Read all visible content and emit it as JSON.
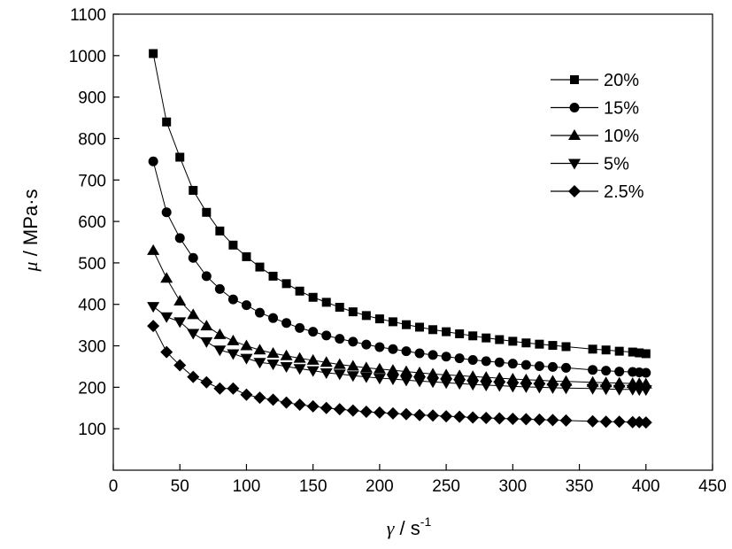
{
  "chart_data": {
    "type": "line",
    "title": "",
    "xlabel": {
      "symbol": "γ",
      "unit": " / s",
      "sup": "-1"
    },
    "ylabel": {
      "symbol": "μ",
      "unit": " / MPa·s"
    },
    "xlim": [
      0,
      450
    ],
    "ylim": [
      0,
      1100
    ],
    "xticks": [
      "0",
      "50",
      "100",
      "150",
      "200",
      "250",
      "300",
      "350",
      "400",
      "450"
    ],
    "yticks": [
      "100",
      "200",
      "300",
      "400",
      "500",
      "600",
      "700",
      "800",
      "900",
      "1000",
      "1100"
    ],
    "grid": false,
    "legend_position": "top-right",
    "x": [
      30,
      40,
      50,
      60,
      70,
      80,
      90,
      100,
      110,
      120,
      130,
      140,
      150,
      160,
      170,
      180,
      190,
      200,
      210,
      220,
      230,
      240,
      250,
      260,
      270,
      280,
      290,
      300,
      310,
      320,
      330,
      340,
      360,
      370,
      380,
      390,
      395,
      400
    ],
    "series": [
      {
        "name": "20%",
        "marker": "square",
        "values": [
          1005,
          840,
          755,
          675,
          622,
          577,
          543,
          515,
          490,
          468,
          450,
          432,
          417,
          405,
          393,
          382,
          373,
          365,
          358,
          351,
          345,
          339,
          334,
          329,
          324,
          319,
          315,
          311,
          307,
          304,
          301,
          298,
          292,
          290,
          287,
          285,
          283,
          281
        ]
      },
      {
        "name": "15%",
        "marker": "circle",
        "values": [
          745,
          622,
          560,
          512,
          468,
          437,
          412,
          398,
          380,
          367,
          355,
          343,
          334,
          325,
          317,
          310,
          303,
          297,
          292,
          287,
          282,
          278,
          274,
          270,
          266,
          263,
          260,
          257,
          254,
          251,
          249,
          247,
          242,
          240,
          238,
          237,
          236,
          235
        ]
      },
      {
        "name": "10%",
        "marker": "triangle-up",
        "values": [
          530,
          463,
          408,
          375,
          348,
          327,
          312,
          300,
          290,
          282,
          276,
          270,
          265,
          260,
          255,
          251,
          247,
          244,
          241,
          238,
          235,
          232,
          230,
          228,
          226,
          224,
          222,
          220,
          218,
          217,
          215,
          214,
          212,
          211,
          210,
          209,
          209,
          208
        ]
      },
      {
        "name": "5%",
        "marker": "triangle-down",
        "values": [
          395,
          370,
          358,
          330,
          310,
          290,
          281,
          270,
          260,
          256,
          250,
          245,
          240,
          235,
          232,
          228,
          225,
          222,
          220,
          217,
          215,
          213,
          211,
          209,
          207,
          205,
          204,
          202,
          201,
          200,
          199,
          198,
          197,
          196,
          195,
          195,
          194,
          194
        ]
      },
      {
        "name": "2.5%",
        "marker": "diamond",
        "values": [
          348,
          285,
          253,
          225,
          212,
          197,
          197,
          182,
          175,
          170,
          163,
          158,
          154,
          150,
          147,
          144,
          141,
          139,
          137,
          135,
          133,
          132,
          130,
          129,
          127,
          126,
          125,
          124,
          123,
          122,
          121,
          120,
          118,
          117,
          117,
          116,
          116,
          115
        ]
      }
    ]
  }
}
